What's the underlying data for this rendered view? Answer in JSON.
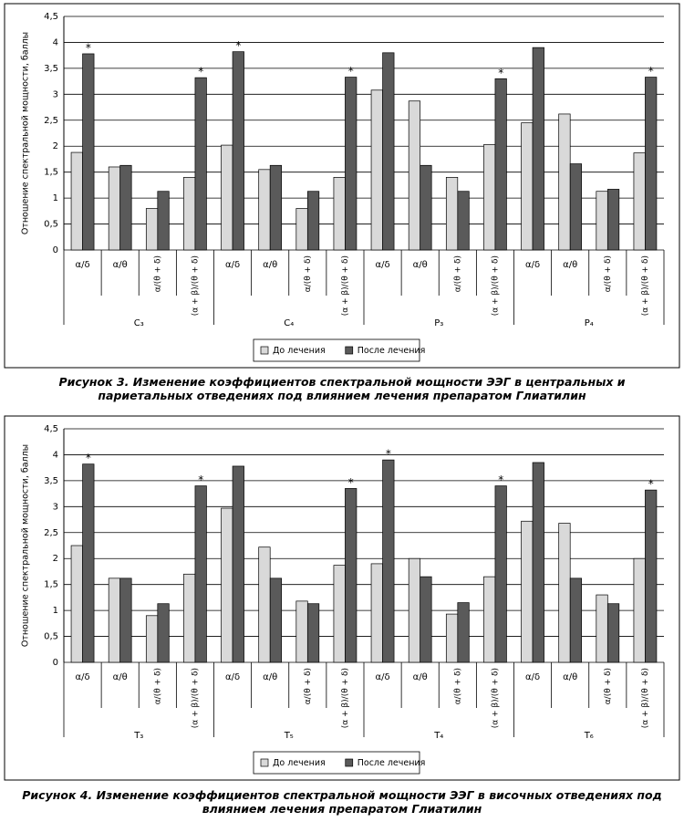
{
  "chart_data": [
    {
      "type": "bar",
      "y_label": "Отношение спектральной мощности, баллы",
      "categories": [
        "α/δ",
        "α/θ",
        "α/(θ + δ)",
        "(α + β)/(θ + δ)",
        "α/δ",
        "α/θ",
        "α/(θ + δ)",
        "(α + β)/(θ + δ)",
        "α/δ",
        "α/θ",
        "α/(θ + δ)",
        "(α + β)/(θ + δ)",
        "α/δ",
        "α/θ",
        "α/(θ + δ)",
        "(α + β)/(θ + δ)"
      ],
      "groups": [
        "C₃",
        "C₄",
        "P₃",
        "P₄"
      ],
      "series": [
        {
          "name": "До лечения",
          "color": "#d9d9d9",
          "values": [
            1.88,
            1.6,
            0.8,
            1.4,
            2.02,
            1.55,
            0.8,
            1.4,
            3.08,
            2.87,
            1.4,
            2.03,
            2.45,
            2.62,
            1.13,
            1.87
          ]
        },
        {
          "name": "После лечения",
          "color": "#5a5a5a",
          "values": [
            3.78,
            1.63,
            1.13,
            3.32,
            3.82,
            1.63,
            1.13,
            3.33,
            3.8,
            1.63,
            1.13,
            3.3,
            3.9,
            1.66,
            1.17,
            3.33
          ]
        }
      ],
      "annotations": [
        {
          "text": "*",
          "category": 0
        },
        {
          "text": "*",
          "category": 3
        },
        {
          "text": "*",
          "category": 4
        },
        {
          "text": "*",
          "category": 7
        },
        {
          "text": "*",
          "category": 11
        },
        {
          "text": "*",
          "category": 15
        }
      ],
      "ylim": [
        0,
        4.5
      ],
      "yticks": [
        0,
        {
          "value": 0.5,
          "label": "0,5"
        },
        1,
        {
          "value": 1.5,
          "label": "1,5"
        },
        2,
        {
          "value": 2.5,
          "label": "2,5"
        },
        3,
        {
          "value": 3.5,
          "label": "3,5"
        },
        4,
        {
          "value": 4.5,
          "label": "4,5"
        }
      ],
      "grid": true,
      "legend": "bottom",
      "caption": "Рисунок 3. Изменение коэффициентов спектральной мощности ЭЭГ в центральных и париетальных отведениях под влиянием лечения препаратом Глиатилин"
    },
    {
      "type": "bar",
      "y_label": "Отношение спектральной мощности, баллы",
      "categories": [
        "α/δ",
        "α/θ",
        "α/(θ + δ)",
        "(α + β)/(θ + δ)",
        "α/δ",
        "α/θ",
        "α/(θ + δ)",
        "(α + β)/(θ + δ)",
        "α/δ",
        "α/θ",
        "α/(θ + δ)",
        "(α + β)/(θ + δ)",
        "α/δ",
        "α/θ",
        "α/(θ + δ)",
        "(α + β)/(θ + δ)"
      ],
      "groups": [
        "T₃",
        "T₅",
        "T₄",
        "T₆"
      ],
      "series": [
        {
          "name": "До лечения",
          "color": "#d9d9d9",
          "values": [
            2.25,
            1.62,
            0.9,
            1.7,
            2.97,
            2.22,
            1.18,
            1.87,
            1.9,
            2.0,
            0.93,
            1.65,
            2.72,
            2.68,
            1.3,
            2.0
          ]
        },
        {
          "name": "После лечения",
          "color": "#5a5a5a",
          "values": [
            3.82,
            1.62,
            1.13,
            3.4,
            3.78,
            1.62,
            1.13,
            3.35,
            3.9,
            1.65,
            1.15,
            3.4,
            3.85,
            1.62,
            1.13,
            3.32
          ]
        }
      ],
      "annotations": [
        {
          "text": "*",
          "category": 0
        },
        {
          "text": "*",
          "category": 3
        },
        {
          "text": "*",
          "category": 7
        },
        {
          "text": "*",
          "category": 8
        },
        {
          "text": "*",
          "category": 11
        },
        {
          "text": "*",
          "category": 15
        }
      ],
      "ylim": [
        0,
        4.5
      ],
      "yticks": [
        0,
        {
          "value": 0.5,
          "label": "0,5"
        },
        1,
        {
          "value": 1.5,
          "label": "1,5"
        },
        2,
        {
          "value": 2.5,
          "label": "2,5"
        },
        3,
        {
          "value": 3.5,
          "label": "3,5"
        },
        4,
        {
          "value": 4.5,
          "label": "4,5"
        }
      ],
      "grid": true,
      "legend": "bottom",
      "caption": "Рисунок 4. Изменение коэффициентов спектральной мощности ЭЭГ в височных отведениях под влиянием лечения препаратом Глиатилин"
    }
  ]
}
